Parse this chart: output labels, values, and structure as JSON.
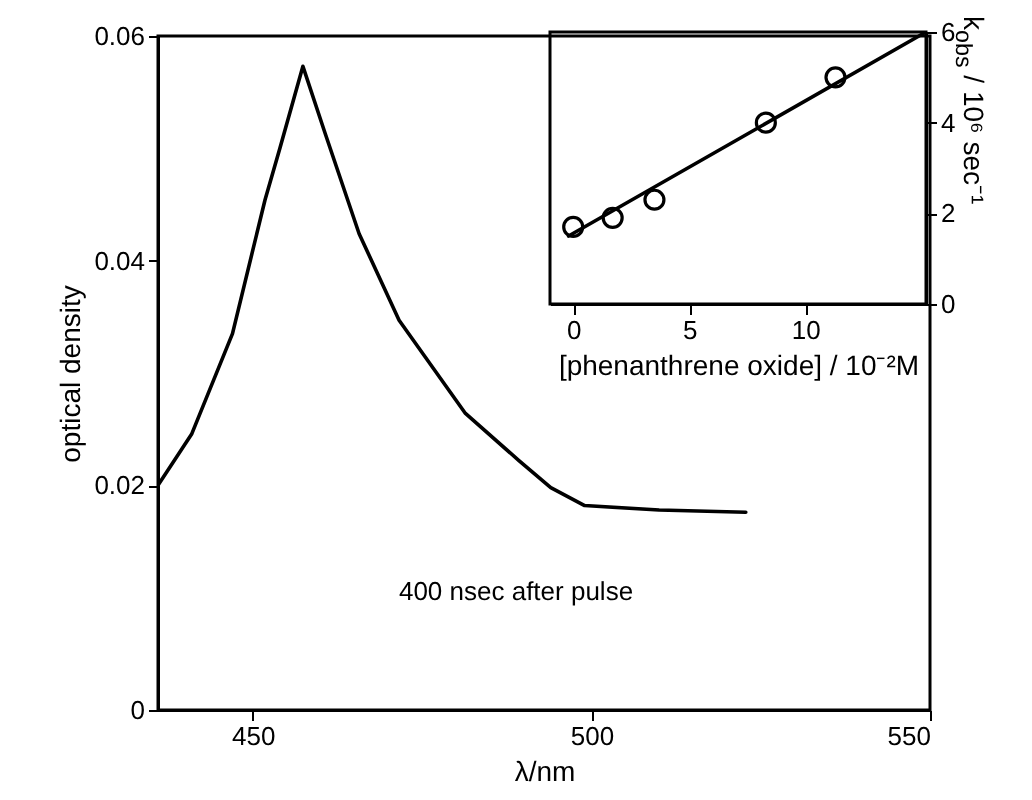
{
  "chart_data": [
    {
      "type": "line",
      "xlabel": "λ/nm",
      "ylabel": "optical density",
      "xlim": [
        436,
        550
      ],
      "xticks": [
        450,
        500,
        550
      ],
      "ylim": [
        0,
        0.06
      ],
      "yticks": [
        0,
        0.02,
        0.04,
        0.06
      ],
      "annotations": [
        "400 nsec after pulse"
      ],
      "x": [
        436,
        441,
        447,
        451.8,
        454,
        457.4,
        460.7,
        465.7,
        471.6,
        481.4,
        489.3,
        494,
        499,
        510,
        522.8
      ],
      "series": [
        {
          "color": "#000000",
          "values": [
            0.02,
            0.0246,
            0.0335,
            0.0454,
            0.05,
            0.0573,
            0.0513,
            0.0424,
            0.0347,
            0.0264,
            0.0222,
            0.0198,
            0.0182,
            0.0178,
            0.0176
          ]
        }
      ]
    },
    {
      "type": "scatter",
      "xlabel": "[phenanthrene oxide] / 10⁻²M",
      "ylabel": "k$_{obs}$ / 10⁶ sec⁻¹",
      "xlim": [
        -1,
        15.2
      ],
      "xticks": [
        0,
        5,
        10
      ],
      "ylim": [
        0,
        6
      ],
      "yticks": [
        0,
        2,
        4,
        6
      ],
      "series": [
        {
          "marker": "circle",
          "color": "#000000",
          "x": [
            0,
            1.7,
            3.5,
            8.3,
            11.3
          ],
          "values": [
            1.7,
            1.9,
            2.3,
            4.0,
            5.0
          ]
        },
        {
          "type": "line",
          "color": "#000000",
          "x": [
            -0.2,
            15.2
          ],
          "values": [
            1.5,
            6
          ]
        }
      ]
    }
  ]
}
